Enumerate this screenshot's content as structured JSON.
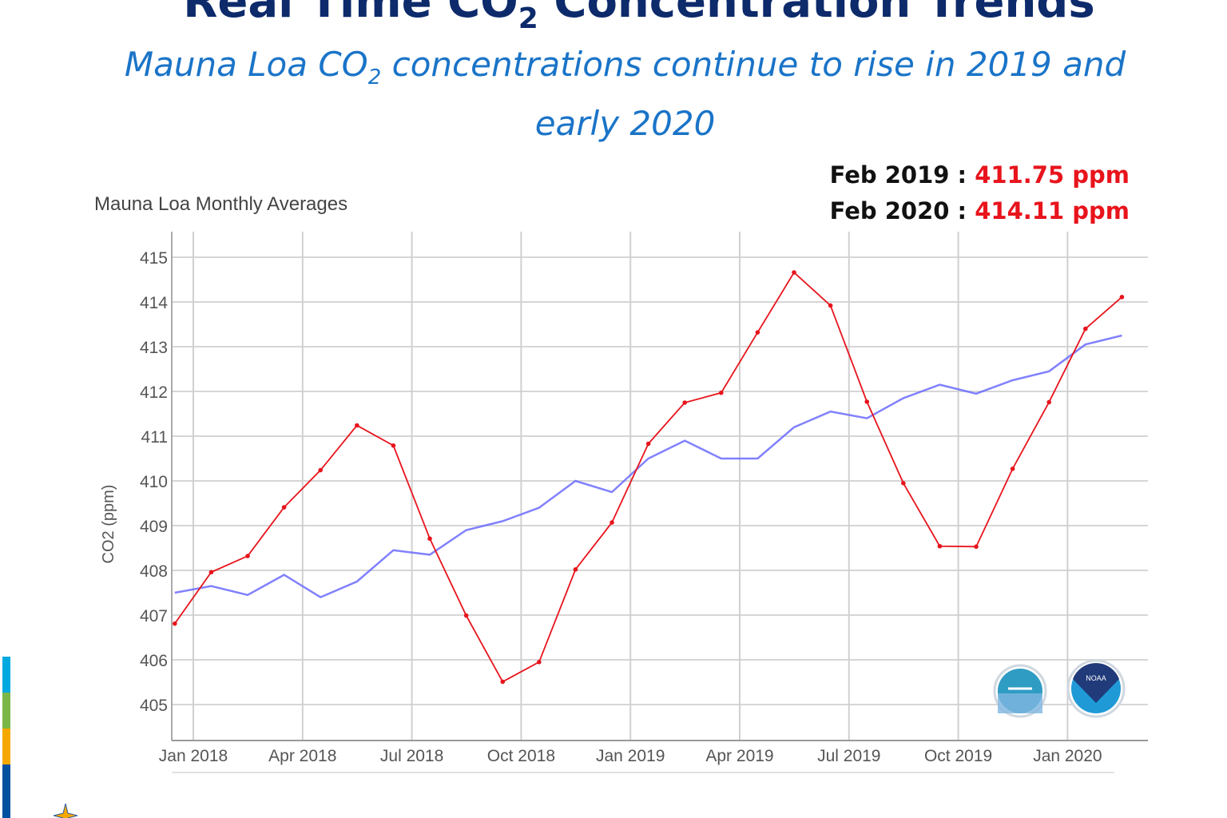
{
  "header": {
    "title_pre": "Real Time CO",
    "title_sub": "2",
    "title_post": " Concentration Trends",
    "subtitle_pre": "Mauna Loa CO",
    "subtitle_sub": "2",
    "subtitle_post": " concentrations  continue to rise in 2019 and early 2020"
  },
  "callouts": [
    {
      "label": "Feb 2019 : ",
      "value": "411.75 ppm"
    },
    {
      "label": "Feb 2020 : ",
      "value": "414.11 ppm"
    }
  ],
  "colors": {
    "title": "#0d2a6b",
    "subtitle": "#1a74c8",
    "monthly": "#e8141c",
    "trend": "#6b6bff",
    "side_bar": [
      "#00a9e0",
      "#7ab648",
      "#f5a800",
      "#0050a0"
    ]
  },
  "logos": [
    "noaa-research-logo",
    "noaa-logo"
  ],
  "chart_data": {
    "type": "line",
    "title": "Mauna Loa Monthly Averages",
    "ylabel": "CO2 (ppm)",
    "ylim": [
      404.4,
      415.6
    ],
    "yticks": [
      405,
      406,
      407,
      408,
      409,
      410,
      411,
      412,
      413,
      414,
      415
    ],
    "xticks": [
      {
        "label": "Jan 2018",
        "date": "2018-01-01"
      },
      {
        "label": "Apr 2018",
        "date": "2018-04-01"
      },
      {
        "label": "Jul 2018",
        "date": "2018-07-01"
      },
      {
        "label": "Oct 2018",
        "date": "2018-10-01"
      },
      {
        "label": "Jan 2019",
        "date": "2019-01-01"
      },
      {
        "label": "Apr 2019",
        "date": "2019-04-01"
      },
      {
        "label": "Jul 2019",
        "date": "2019-07-01"
      },
      {
        "label": "Oct 2019",
        "date": "2019-10-01"
      },
      {
        "label": "Jan 2020",
        "date": "2020-01-01"
      }
    ],
    "grid": true,
    "x": [
      "2017-12",
      "2018-01",
      "2018-02",
      "2018-03",
      "2018-04",
      "2018-05",
      "2018-06",
      "2018-07",
      "2018-08",
      "2018-09",
      "2018-10",
      "2018-11",
      "2018-12",
      "2019-01",
      "2019-02",
      "2019-03",
      "2019-04",
      "2019-05",
      "2019-06",
      "2019-07",
      "2019-08",
      "2019-09",
      "2019-10",
      "2019-11",
      "2019-12",
      "2020-01",
      "2020-02"
    ],
    "series": [
      {
        "key": "monthly",
        "values": [
          406.81,
          407.96,
          408.32,
          409.41,
          410.24,
          411.24,
          410.79,
          408.71,
          406.99,
          405.51,
          405.95,
          408.02,
          409.07,
          410.83,
          411.75,
          411.97,
          413.32,
          414.66,
          413.92,
          411.77,
          409.95,
          408.54,
          408.53,
          410.27,
          411.76,
          413.4,
          414.11
        ]
      },
      {
        "key": "trend",
        "values": [
          407.5,
          407.65,
          407.45,
          407.9,
          407.4,
          407.75,
          408.45,
          408.35,
          408.9,
          409.1,
          409.4,
          410.0,
          409.75,
          410.5,
          410.9,
          410.5,
          410.5,
          411.2,
          411.55,
          411.4,
          411.85,
          412.15,
          411.95,
          412.25,
          412.45,
          413.05,
          413.25
        ]
      }
    ]
  }
}
